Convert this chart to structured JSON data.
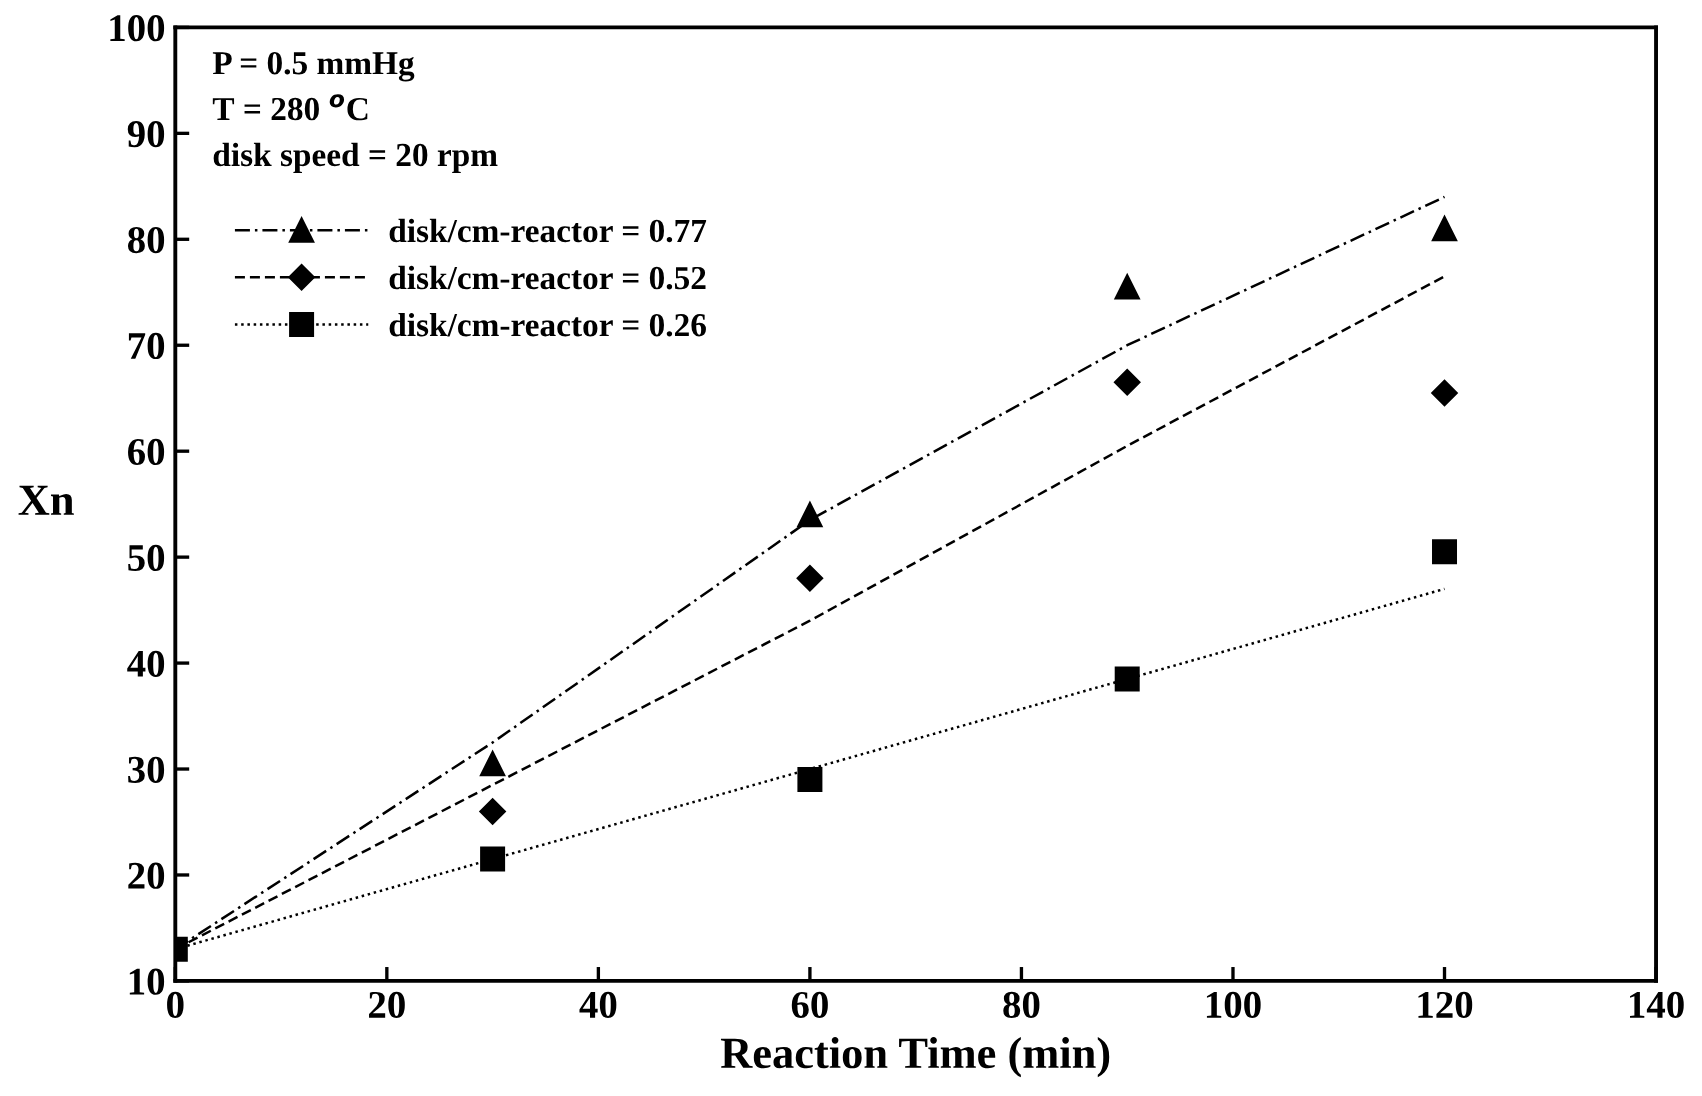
{
  "chart_data": {
    "type": "scatter",
    "xlabel": "Reaction Time (min)",
    "ylabel": "Xn",
    "annotations": [
      "P = 0.5 mmHg",
      "T = 280 $^{o}$C",
      "disk speed = 20 rpm"
    ],
    "xlim": [
      0,
      140
    ],
    "xticks": [
      0,
      20,
      40,
      60,
      80,
      100,
      120,
      140
    ],
    "ylim": [
      10,
      100
    ],
    "yticks": [
      10,
      20,
      30,
      40,
      50,
      60,
      70,
      80,
      90,
      100
    ],
    "grid": false,
    "legend": "top left",
    "series": [
      {
        "name": "disk/cm-reactor = 0.77",
        "color": "#000000",
        "marker": "triangle",
        "x": [
          30,
          60,
          90,
          120
        ],
        "values": [
          30.5,
          54,
          75.5,
          81
        ]
      },
      {
        "type": "line",
        "color": "#000000",
        "line_style": "dashdot",
        "marker": "none",
        "x": [
          0,
          30,
          60,
          90,
          120
        ],
        "values": [
          13,
          32.5,
          53.5,
          70,
          84
        ]
      },
      {
        "name": "disk/cm-reactor = 0.52",
        "color": "#000000",
        "marker": "diamond",
        "x": [
          30,
          60,
          90,
          120
        ],
        "values": [
          26,
          48,
          66.5,
          65.5
        ]
      },
      {
        "type": "line",
        "color": "#000000",
        "line_style": "dashed",
        "marker": "none",
        "x": [
          0,
          30,
          60,
          90,
          120
        ],
        "values": [
          13,
          28.5,
          44,
          60.5,
          76.5
        ]
      },
      {
        "name": "disk/cm-reactor = 0.26",
        "color": "#000000",
        "marker": "square",
        "x": [
          0,
          30,
          60,
          90,
          120
        ],
        "values": [
          13,
          21.5,
          29,
          38.5,
          50.5
        ]
      },
      {
        "type": "line",
        "color": "#000000",
        "line_style": "dotted",
        "marker": "none",
        "x": [
          0,
          30,
          60,
          90,
          120
        ],
        "values": [
          13,
          21.5,
          30,
          38.5,
          47
        ]
      }
    ]
  }
}
